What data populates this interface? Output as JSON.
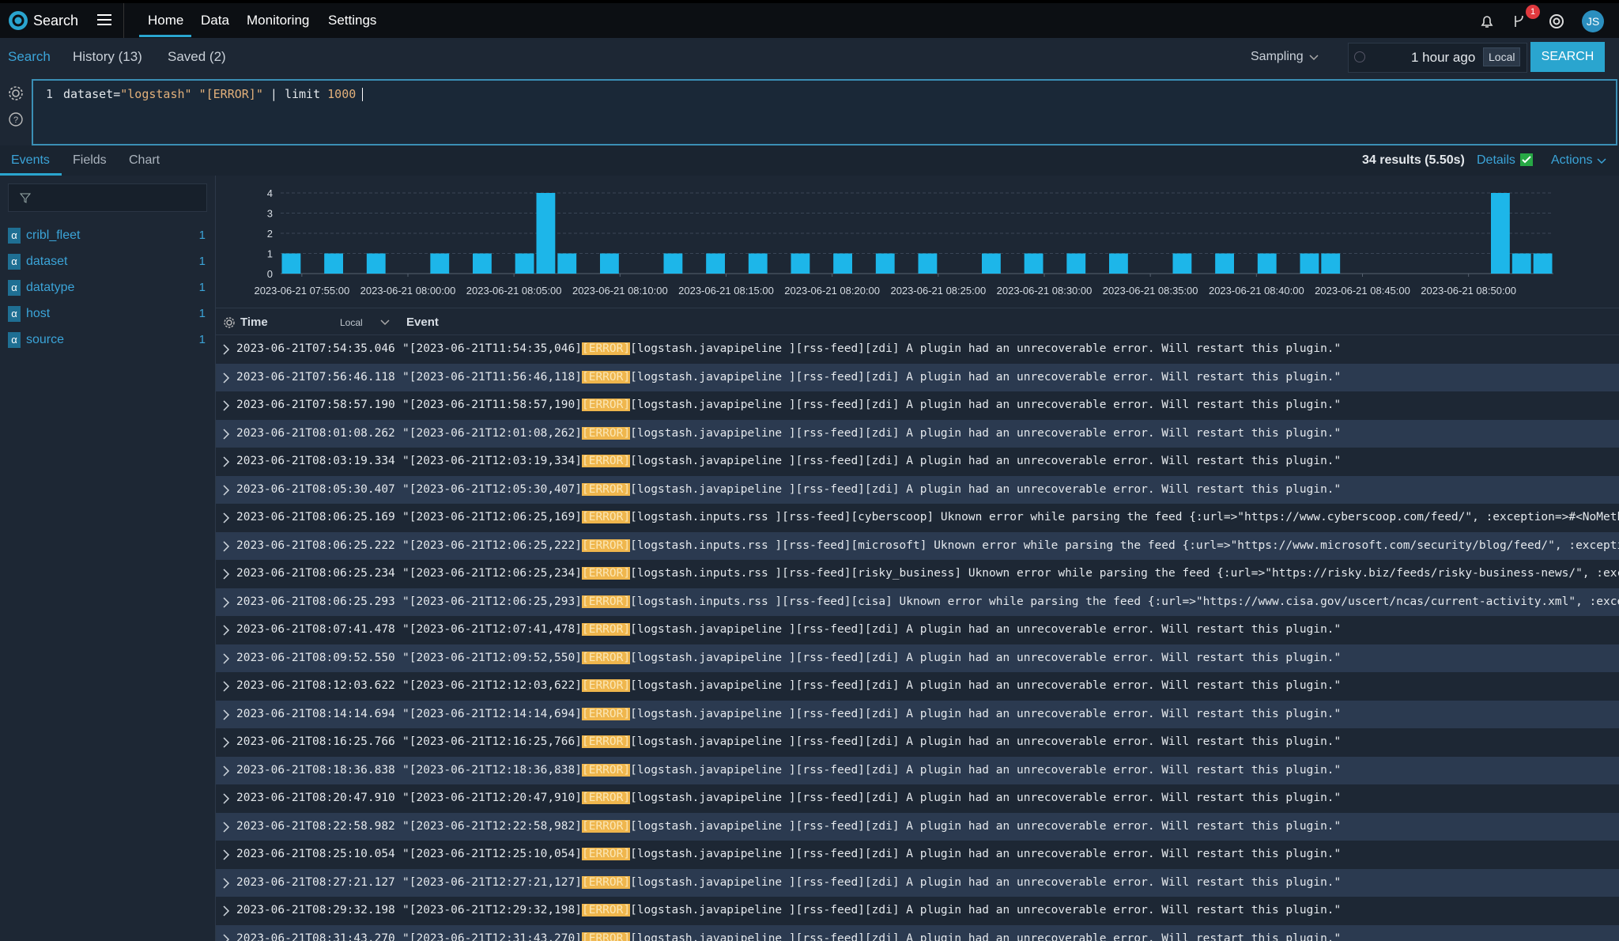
{
  "nav": {
    "brand": "Search",
    "items": [
      "Home",
      "Data",
      "Monitoring",
      "Settings"
    ],
    "badge": "1",
    "avatar": "JS"
  },
  "toolbar": {
    "tabs": [
      "Search",
      "History (13)",
      "Saved (2)"
    ],
    "sampling": "Sampling",
    "time_range": "1 hour ago",
    "timezone": "Local",
    "button": "SEARCH"
  },
  "query": {
    "line": "1",
    "tokens": [
      "dataset=",
      "\"logstash\" \"[ERROR]\"",
      " | limit ",
      "1000"
    ]
  },
  "results": {
    "tabs": [
      "Events",
      "Fields",
      "Chart"
    ],
    "summary": "34 results (5.50s)",
    "details": "Details",
    "actions": "Actions"
  },
  "fields": [
    {
      "type": "α",
      "name": "cribl_fleet",
      "count": 1
    },
    {
      "type": "α",
      "name": "dataset",
      "count": 1
    },
    {
      "type": "α",
      "name": "datatype",
      "count": 1
    },
    {
      "type": "α",
      "name": "host",
      "count": 1
    },
    {
      "type": "α",
      "name": "source",
      "count": 1
    }
  ],
  "chart_data": {
    "type": "bar",
    "color": "#1db6e9",
    "grid": true,
    "x": [
      "2023-06-21 07:54:00",
      "2023-06-21 07:56:00",
      "2023-06-21 07:58:00",
      "2023-06-21 08:01:00",
      "2023-06-21 08:03:00",
      "2023-06-21 08:05:00",
      "2023-06-21 08:06:00",
      "2023-06-21 08:07:00",
      "2023-06-21 08:09:00",
      "2023-06-21 08:12:00",
      "2023-06-21 08:14:00",
      "2023-06-21 08:16:00",
      "2023-06-21 08:18:00",
      "2023-06-21 08:20:00",
      "2023-06-21 08:22:00",
      "2023-06-21 08:24:00",
      "2023-06-21 08:27:00",
      "2023-06-21 08:29:00",
      "2023-06-21 08:31:00",
      "2023-06-21 08:33:00",
      "2023-06-21 08:36:00",
      "2023-06-21 08:38:00",
      "2023-06-21 08:40:00",
      "2023-06-21 08:42:00",
      "2023-06-21 08:43:00",
      "2023-06-21 08:51:00",
      "2023-06-21 08:52:00",
      "2023-06-21 08:53:00"
    ],
    "values": [
      1,
      1,
      1,
      1,
      1,
      1,
      4,
      1,
      1,
      1,
      1,
      1,
      1,
      1,
      1,
      1,
      1,
      1,
      1,
      1,
      1,
      1,
      1,
      1,
      1,
      4,
      1,
      1
    ],
    "xlim": [
      "2023-06-21 07:54:00",
      "2023-06-21 08:54:00"
    ],
    "xticks": [
      "2023-06-21 07:55:00",
      "2023-06-21 08:00:00",
      "2023-06-21 08:05:00",
      "2023-06-21 08:10:00",
      "2023-06-21 08:15:00",
      "2023-06-21 08:20:00",
      "2023-06-21 08:25:00",
      "2023-06-21 08:30:00",
      "2023-06-21 08:35:00",
      "2023-06-21 08:40:00",
      "2023-06-21 08:45:00",
      "2023-06-21 08:50:00"
    ],
    "ylim": [
      0,
      4
    ],
    "yticks": [
      0,
      1,
      2,
      3,
      4
    ]
  },
  "events": {
    "columns": [
      "Time",
      "Event"
    ],
    "timezone": "Local",
    "rows": [
      {
        "time": "2023-06-21T07:54:35.046",
        "prefix": "\"[2023-06-21T11:54:35,046]",
        "level": "[ERROR]",
        "message": "[logstash.javapipeline ][rss-feed][zdi] A plugin had an unrecoverable error. Will restart this plugin.\""
      },
      {
        "time": "2023-06-21T07:56:46.118",
        "prefix": "\"[2023-06-21T11:56:46,118]",
        "level": "[ERROR]",
        "message": "[logstash.javapipeline ][rss-feed][zdi] A plugin had an unrecoverable error. Will restart this plugin.\""
      },
      {
        "time": "2023-06-21T07:58:57.190",
        "prefix": "\"[2023-06-21T11:58:57,190]",
        "level": "[ERROR]",
        "message": "[logstash.javapipeline ][rss-feed][zdi] A plugin had an unrecoverable error. Will restart this plugin.\""
      },
      {
        "time": "2023-06-21T08:01:08.262",
        "prefix": "\"[2023-06-21T12:01:08,262]",
        "level": "[ERROR]",
        "message": "[logstash.javapipeline ][rss-feed][zdi] A plugin had an unrecoverable error. Will restart this plugin.\""
      },
      {
        "time": "2023-06-21T08:03:19.334",
        "prefix": "\"[2023-06-21T12:03:19,334]",
        "level": "[ERROR]",
        "message": "[logstash.javapipeline ][rss-feed][zdi] A plugin had an unrecoverable error. Will restart this plugin.\""
      },
      {
        "time": "2023-06-21T08:05:30.407",
        "prefix": "\"[2023-06-21T12:05:30,407]",
        "level": "[ERROR]",
        "message": "[logstash.javapipeline ][rss-feed][zdi] A plugin had an unrecoverable error. Will restart this plugin.\""
      },
      {
        "time": "2023-06-21T08:06:25.169",
        "prefix": "\"[2023-06-21T12:06:25,169]",
        "level": "[ERROR]",
        "message": "[logstash.inputs.rss ][rss-feed][cyberscoop] Uknown error while parsing the feed {:url=>\"https://www.cyberscoop.com/feed/\", :exception=>#<NoMethodE"
      },
      {
        "time": "2023-06-21T08:06:25.222",
        "prefix": "\"[2023-06-21T12:06:25,222]",
        "level": "[ERROR]",
        "message": "[logstash.inputs.rss ][rss-feed][microsoft] Uknown error while parsing the feed {:url=>\"https://www.microsoft.com/security/blog/feed/\", :exception=>"
      },
      {
        "time": "2023-06-21T08:06:25.234",
        "prefix": "\"[2023-06-21T12:06:25,234]",
        "level": "[ERROR]",
        "message": "[logstash.inputs.rss ][rss-feed][risky_business] Uknown error while parsing the feed {:url=>\"https://risky.biz/feeds/risky-business-news/\", :except"
      },
      {
        "time": "2023-06-21T08:06:25.293",
        "prefix": "\"[2023-06-21T12:06:25,293]",
        "level": "[ERROR]",
        "message": "[logstash.inputs.rss ][rss-feed][cisa] Uknown error while parsing the feed {:url=>\"https://www.cisa.gov/uscert/ncas/current-activity.xml\", :excepti"
      },
      {
        "time": "2023-06-21T08:07:41.478",
        "prefix": "\"[2023-06-21T12:07:41,478]",
        "level": "[ERROR]",
        "message": "[logstash.javapipeline ][rss-feed][zdi] A plugin had an unrecoverable error. Will restart this plugin.\""
      },
      {
        "time": "2023-06-21T08:09:52.550",
        "prefix": "\"[2023-06-21T12:09:52,550]",
        "level": "[ERROR]",
        "message": "[logstash.javapipeline ][rss-feed][zdi] A plugin had an unrecoverable error. Will restart this plugin.\""
      },
      {
        "time": "2023-06-21T08:12:03.622",
        "prefix": "\"[2023-06-21T12:12:03,622]",
        "level": "[ERROR]",
        "message": "[logstash.javapipeline ][rss-feed][zdi] A plugin had an unrecoverable error. Will restart this plugin.\""
      },
      {
        "time": "2023-06-21T08:14:14.694",
        "prefix": "\"[2023-06-21T12:14:14,694]",
        "level": "[ERROR]",
        "message": "[logstash.javapipeline ][rss-feed][zdi] A plugin had an unrecoverable error. Will restart this plugin.\""
      },
      {
        "time": "2023-06-21T08:16:25.766",
        "prefix": "\"[2023-06-21T12:16:25,766]",
        "level": "[ERROR]",
        "message": "[logstash.javapipeline ][rss-feed][zdi] A plugin had an unrecoverable error. Will restart this plugin.\""
      },
      {
        "time": "2023-06-21T08:18:36.838",
        "prefix": "\"[2023-06-21T12:18:36,838]",
        "level": "[ERROR]",
        "message": "[logstash.javapipeline ][rss-feed][zdi] A plugin had an unrecoverable error. Will restart this plugin.\""
      },
      {
        "time": "2023-06-21T08:20:47.910",
        "prefix": "\"[2023-06-21T12:20:47,910]",
        "level": "[ERROR]",
        "message": "[logstash.javapipeline ][rss-feed][zdi] A plugin had an unrecoverable error. Will restart this plugin.\""
      },
      {
        "time": "2023-06-21T08:22:58.982",
        "prefix": "\"[2023-06-21T12:22:58,982]",
        "level": "[ERROR]",
        "message": "[logstash.javapipeline ][rss-feed][zdi] A plugin had an unrecoverable error. Will restart this plugin.\""
      },
      {
        "time": "2023-06-21T08:25:10.054",
        "prefix": "\"[2023-06-21T12:25:10,054]",
        "level": "[ERROR]",
        "message": "[logstash.javapipeline ][rss-feed][zdi] A plugin had an unrecoverable error. Will restart this plugin.\""
      },
      {
        "time": "2023-06-21T08:27:21.127",
        "prefix": "\"[2023-06-21T12:27:21,127]",
        "level": "[ERROR]",
        "message": "[logstash.javapipeline ][rss-feed][zdi] A plugin had an unrecoverable error. Will restart this plugin.\""
      },
      {
        "time": "2023-06-21T08:29:32.198",
        "prefix": "\"[2023-06-21T12:29:32,198]",
        "level": "[ERROR]",
        "message": "[logstash.javapipeline ][rss-feed][zdi] A plugin had an unrecoverable error. Will restart this plugin.\""
      },
      {
        "time": "2023-06-21T08:31:43.270",
        "prefix": "\"[2023-06-21T12:31:43,270]",
        "level": "[ERROR]",
        "message": "[logstash.javapipeline ][rss-feed][zdi] A plugin had an unrecoverable error. Will restart this plugin.\""
      }
    ]
  }
}
